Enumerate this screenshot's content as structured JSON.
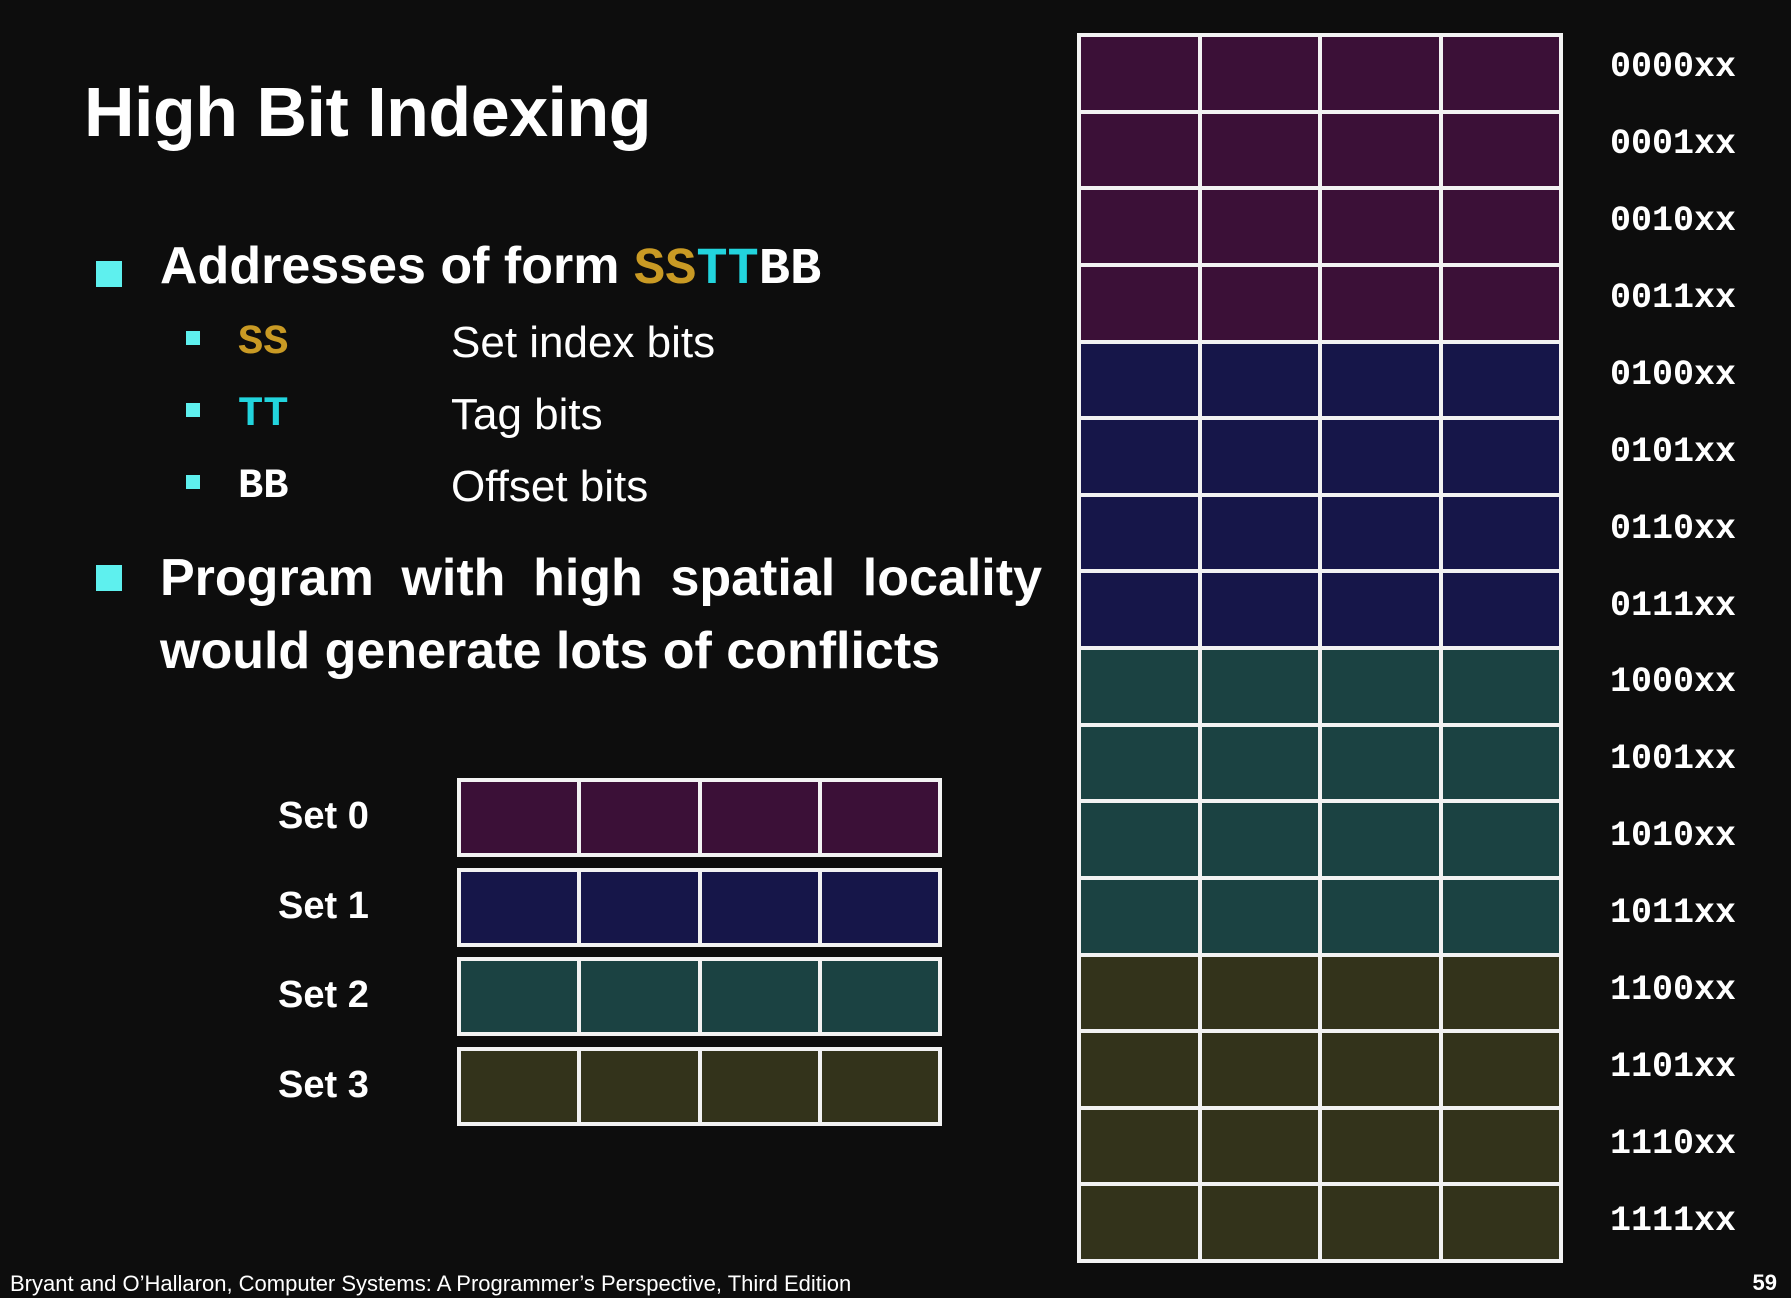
{
  "title": "High Bit Indexing",
  "bullet1": {
    "prefix": "Addresses of form ",
    "ss": "SS",
    "tt": "TT",
    "bb": "BB"
  },
  "sub_items": [
    {
      "code": "SS",
      "desc": "Set index bits",
      "color": "#c99a24"
    },
    {
      "code": "TT",
      "desc": "Tag bits",
      "color": "#22d4dd"
    },
    {
      "code": "BB",
      "desc": "Offset bits",
      "color": "#ffffff"
    }
  ],
  "bullet2": "Program with high spatial locality would generate lots of conflicts",
  "colors": {
    "set0": "#3b1037",
    "set1": "#161649",
    "set2": "#1b4242",
    "set3": "#33331b",
    "bullet": "#5ef0ee"
  },
  "sets": [
    {
      "label": "Set 0",
      "color": "#3b1037"
    },
    {
      "label": "Set 1",
      "color": "#161649"
    },
    {
      "label": "Set 2",
      "color": "#1b4242"
    },
    {
      "label": "Set 3",
      "color": "#33331b"
    }
  ],
  "addresses": [
    "0000xx",
    "0001xx",
    "0010xx",
    "0011xx",
    "0100xx",
    "0101xx",
    "0110xx",
    "0111xx",
    "1000xx",
    "1001xx",
    "1010xx",
    "1011xx",
    "1100xx",
    "1101xx",
    "1110xx",
    "1111xx"
  ],
  "footer": "Bryant and O’Hallaron, Computer Systems: A Programmer’s Perspective, Third Edition",
  "page_number": "59"
}
